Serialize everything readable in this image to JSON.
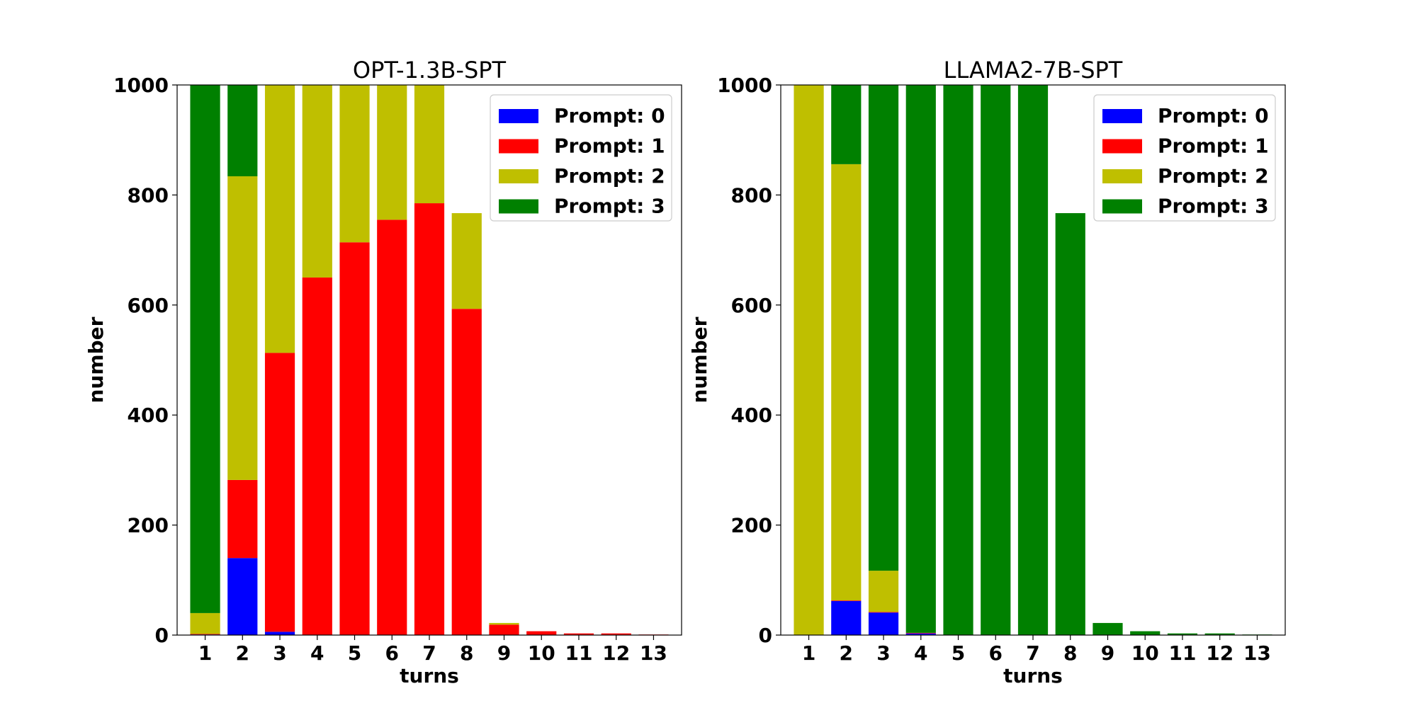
{
  "chart_data": [
    {
      "type": "bar",
      "stacked": true,
      "title": "OPT-1.3B-SPT",
      "xlabel": "turns",
      "ylabel": "number",
      "ylim": [
        0,
        1000
      ],
      "yticks": [
        0,
        200,
        400,
        600,
        800,
        1000
      ],
      "categories": [
        "1",
        "2",
        "3",
        "4",
        "5",
        "6",
        "7",
        "8",
        "9",
        "10",
        "11",
        "12",
        "13"
      ],
      "legend_position": "top-right",
      "series": [
        {
          "name": "Prompt: 0",
          "color": "#0000ff",
          "values": [
            1,
            140,
            6,
            0,
            0,
            0,
            0,
            0,
            0,
            0,
            0,
            0,
            0
          ]
        },
        {
          "name": "Prompt: 1",
          "color": "#ff0000",
          "values": [
            1,
            142,
            507,
            650,
            714,
            755,
            785,
            593,
            19,
            7,
            3,
            3,
            1
          ]
        },
        {
          "name": "Prompt: 2",
          "color": "#bfbf00",
          "values": [
            38,
            552,
            487,
            350,
            286,
            245,
            215,
            174,
            3,
            0,
            0,
            0,
            0
          ]
        },
        {
          "name": "Prompt: 3",
          "color": "#008000",
          "values": [
            960,
            166,
            0,
            0,
            0,
            0,
            0,
            0,
            0,
            0,
            0,
            0,
            0
          ]
        }
      ]
    },
    {
      "type": "bar",
      "stacked": true,
      "title": "LLAMA2-7B-SPT",
      "xlabel": "turns",
      "ylabel": "number",
      "ylim": [
        0,
        1000
      ],
      "yticks": [
        0,
        200,
        400,
        600,
        800,
        1000
      ],
      "categories": [
        "1",
        "2",
        "3",
        "4",
        "5",
        "6",
        "7",
        "8",
        "9",
        "10",
        "11",
        "12",
        "13"
      ],
      "legend_position": "top-right",
      "series": [
        {
          "name": "Prompt: 0",
          "color": "#0000ff",
          "values": [
            0,
            62,
            41,
            3,
            0,
            0,
            0,
            0,
            0,
            0,
            0,
            0,
            0
          ]
        },
        {
          "name": "Prompt: 1",
          "color": "#ff0000",
          "values": [
            0,
            1,
            1,
            1,
            0,
            0,
            0,
            0,
            0,
            0,
            0,
            0,
            0
          ]
        },
        {
          "name": "Prompt: 2",
          "color": "#bfbf00",
          "values": [
            1000,
            793,
            75,
            0,
            0,
            0,
            0,
            0,
            0,
            0,
            0,
            0,
            0
          ]
        },
        {
          "name": "Prompt: 3",
          "color": "#008000",
          "values": [
            0,
            144,
            883,
            996,
            1000,
            1000,
            1000,
            767,
            22,
            7,
            3,
            3,
            1
          ]
        }
      ]
    }
  ]
}
